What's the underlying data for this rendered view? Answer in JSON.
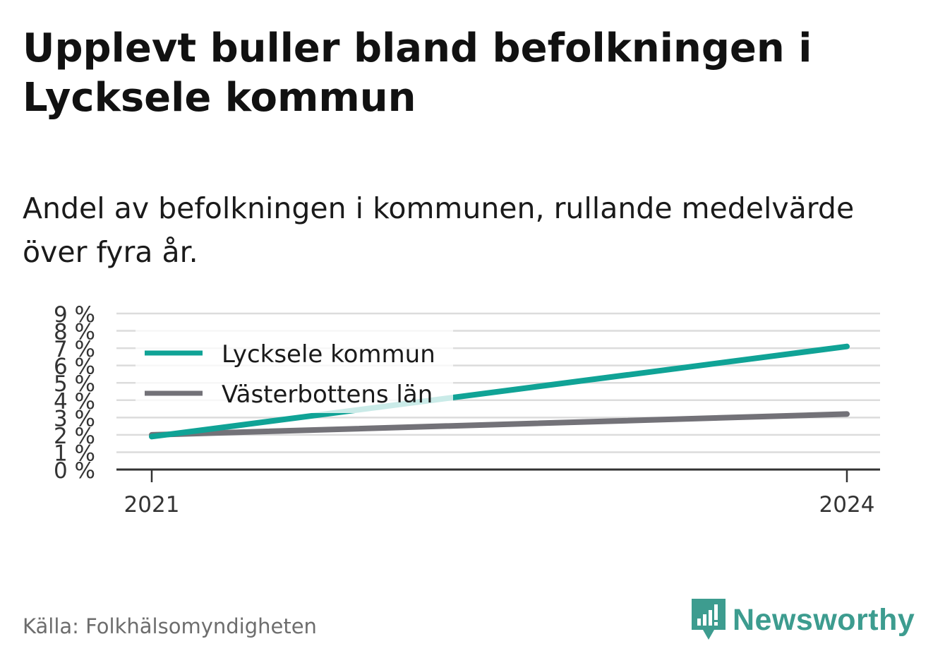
{
  "title": "Upplevt buller bland befolkningen i Lycksele kommun",
  "subtitle": "Andel av befolkningen i kommunen, rullande medelvärde över fyra år.",
  "source": "Källa: Folkhälsomyndigheten",
  "brand": "Newsworthy",
  "colors": {
    "series_1": "#10a396",
    "series_2": "#737278",
    "grid": "#dcdcdc",
    "axis": "#333333",
    "brand": "#3d9c8f"
  },
  "chart_data": {
    "type": "line",
    "x": [
      2021,
      2024
    ],
    "x_tick_labels": [
      "2021",
      "2024"
    ],
    "y_tick_labels": [
      "0 %",
      "1 %",
      "2 %",
      "3 %",
      "4 %",
      "5 %",
      "6 %",
      "7 %",
      "8 %",
      "9 %"
    ],
    "ylim": [
      0,
      9
    ],
    "grid": true,
    "legend_position": "top-left",
    "series": [
      {
        "name": "Lycksele kommun",
        "values": [
          1.9,
          7.1
        ]
      },
      {
        "name": "Västerbottens län",
        "values": [
          2.0,
          3.2
        ]
      }
    ]
  }
}
